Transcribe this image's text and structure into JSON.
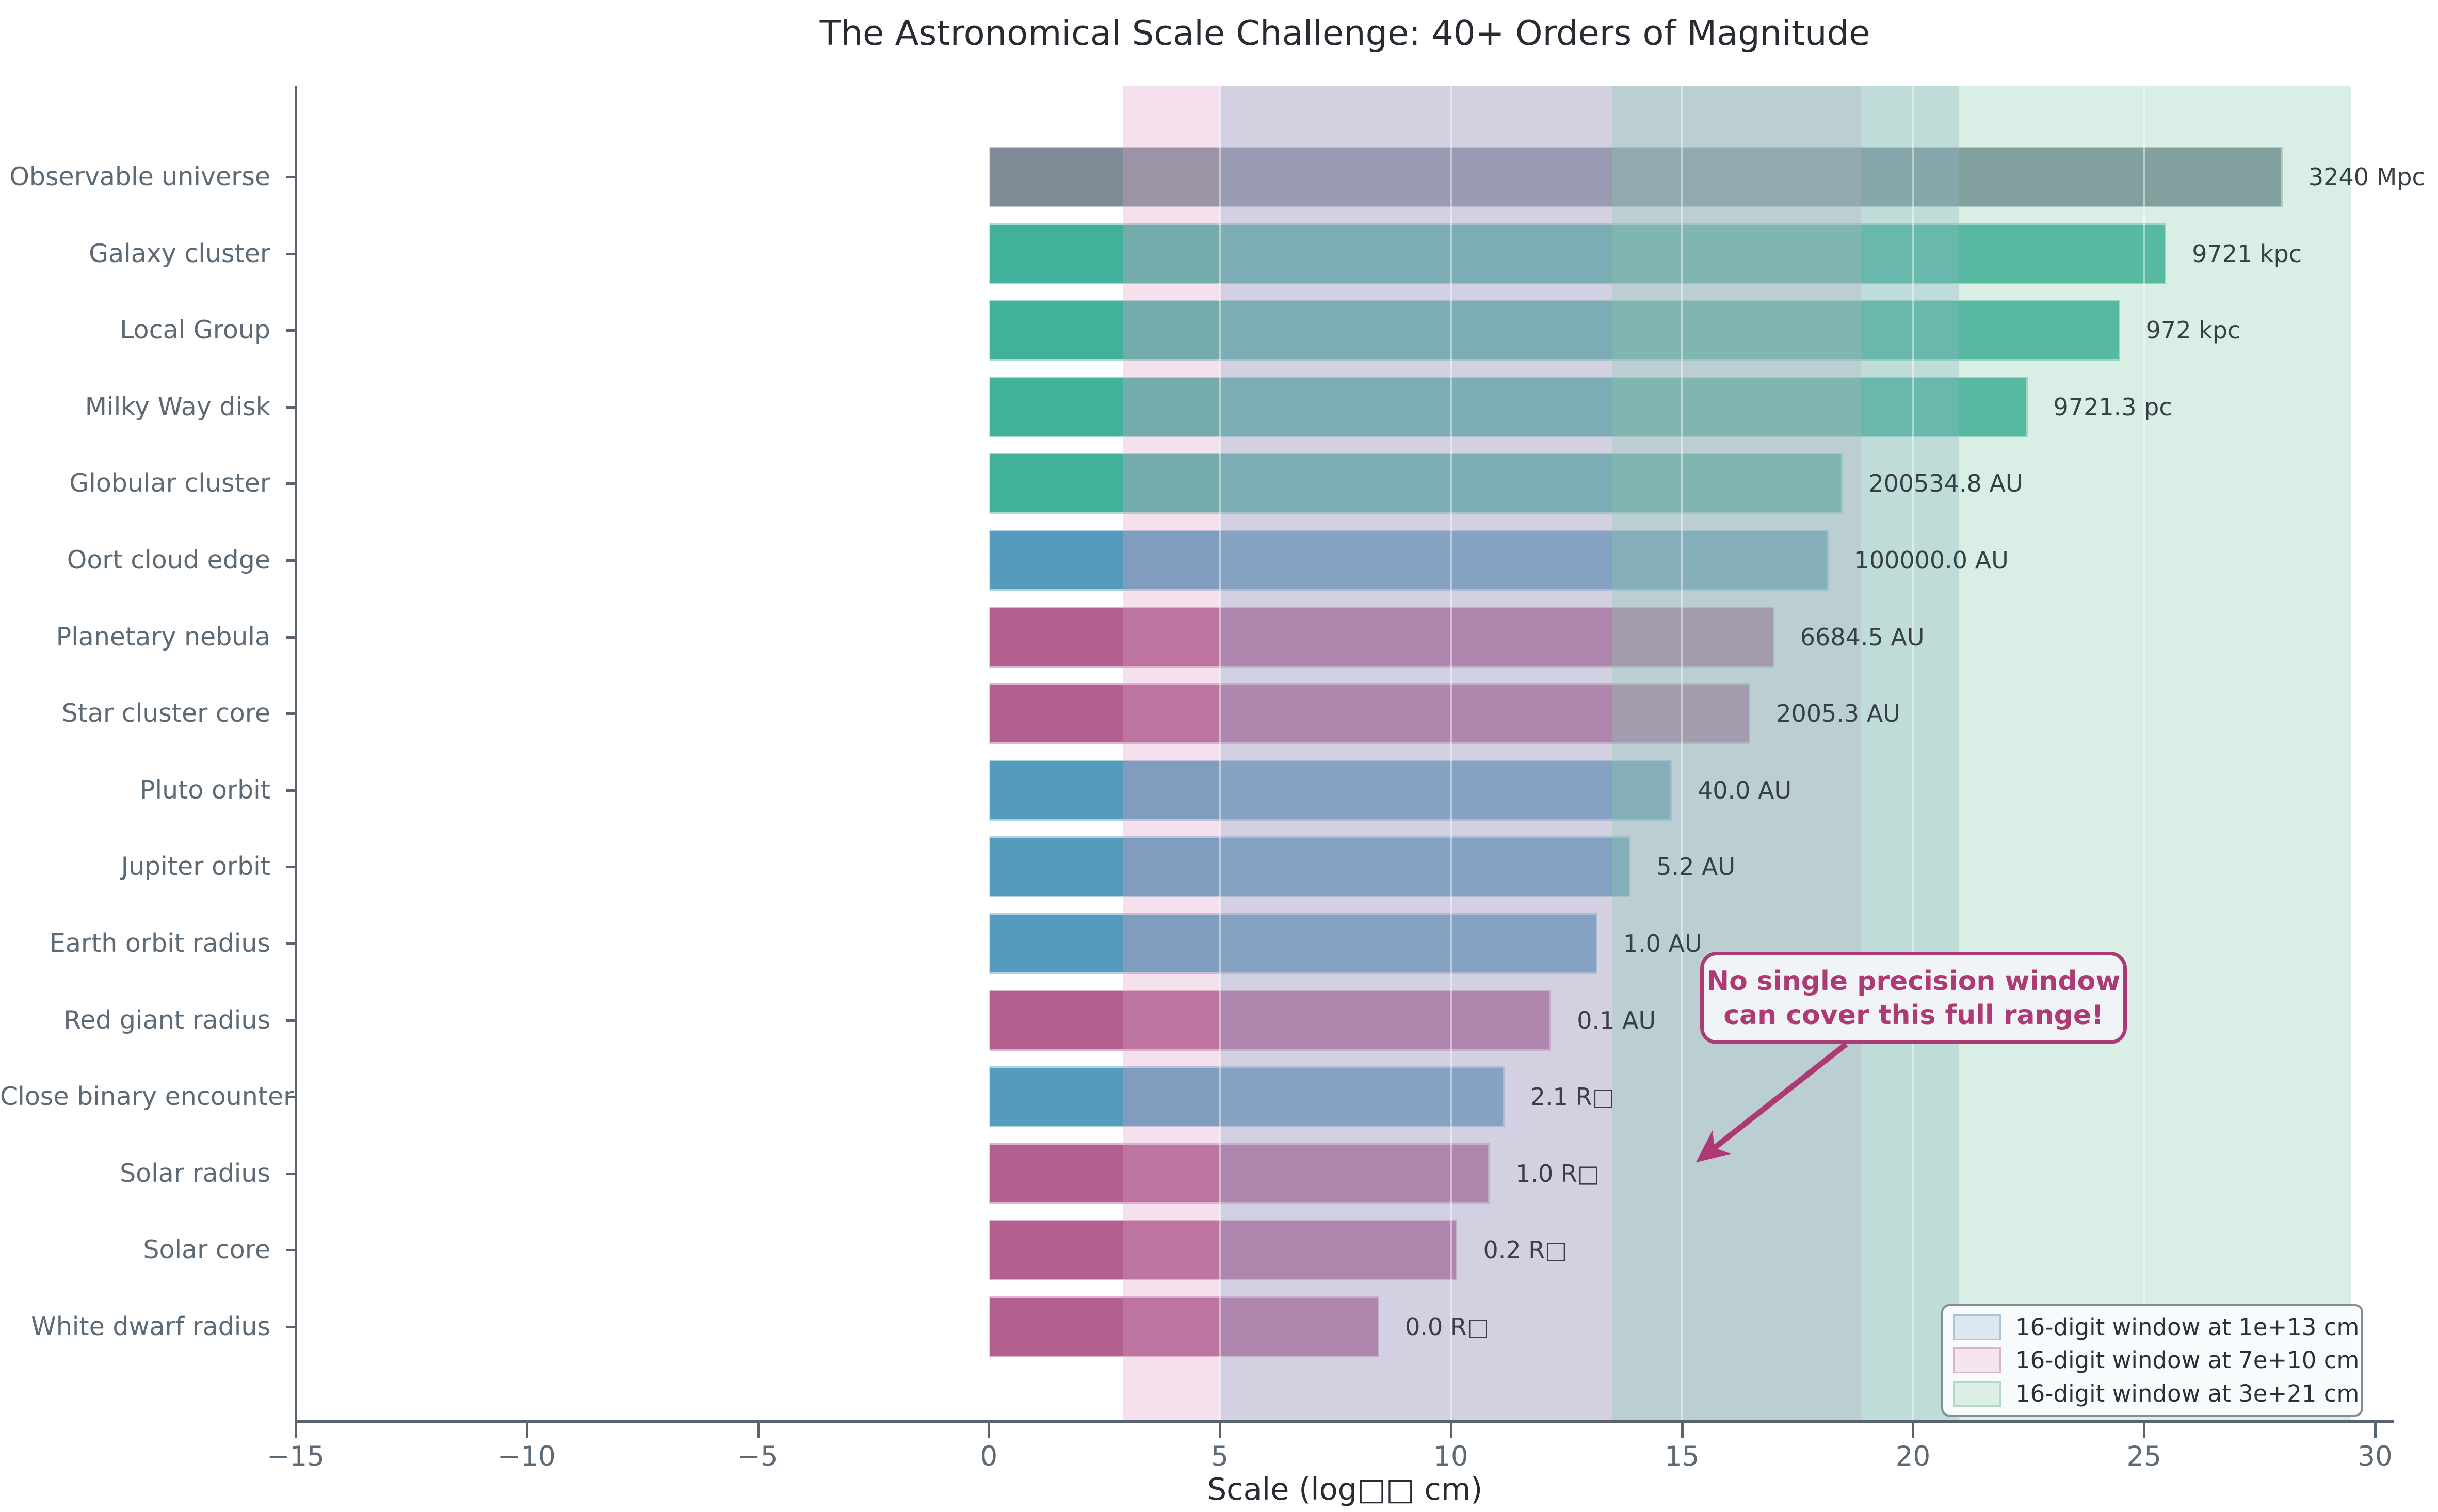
{
  "title": "The Astronomical Scale Challenge: 40+ Orders of Magnitude",
  "annotation": {
    "line1": "No single precision window",
    "line2": "can cover this full range!",
    "color": "#ad3a74"
  },
  "chart_data": {
    "type": "bar",
    "orientation": "horizontal",
    "title": "The Astronomical Scale Challenge: 40+ Orders of Magnitude",
    "xlabel": "Scale (log□□ cm)",
    "ylabel": "",
    "xlim": [
      -15,
      30.4
    ],
    "grid": true,
    "legend_position": "lower right",
    "categories": [
      "Observable universe",
      "Galaxy cluster",
      "Local Group",
      "Milky Way disk",
      "Globular cluster",
      "Oort cloud edge",
      "Planetary nebula",
      "Star cluster core",
      "Pluto orbit",
      "Jupiter orbit",
      "Earth orbit radius",
      "Red giant radius",
      "Close binary encounter",
      "Solar radius",
      "Solar core",
      "White dwarf radius"
    ],
    "values_log10_cm": [
      28.0,
      25.48,
      24.48,
      22.48,
      18.48,
      18.17,
      17.0,
      16.48,
      14.78,
      13.89,
      13.17,
      12.17,
      11.16,
      10.84,
      10.14,
      8.45
    ],
    "bar_labels": [
      "3240 Mpc",
      "9721 kpc",
      "972 kpc",
      "9721.3 pc",
      "200534.8 AU",
      "100000.0 AU",
      "6684.5 AU",
      "2005.3 AU",
      "40.0 AU",
      "5.2 AU",
      "1.0 AU",
      "0.1 AU",
      "2.1 R□",
      "1.0 R□",
      "0.2 R□",
      "0.0 R□"
    ],
    "bar_colors": [
      "#7f8c97",
      "#41b19c",
      "#41b19c",
      "#41b19c",
      "#41b19c",
      "#559bbd",
      "#b2618f",
      "#b2618f",
      "#559bbd",
      "#559bbd",
      "#559bbd",
      "#b2618f",
      "#559bbd",
      "#b2618f",
      "#b2618f",
      "#b2618f"
    ],
    "x_ticks": {
      "values": [
        -15,
        -10,
        -5,
        0,
        5,
        10,
        15,
        20,
        25,
        30
      ],
      "labels": [
        "−15",
        "−10",
        "−5",
        "0",
        "5",
        "10",
        "15",
        "20",
        "25",
        "30"
      ]
    },
    "bands": [
      {
        "label": "16-digit window at 7e+10 cm",
        "from": 2.9,
        "to": 18.87,
        "fill": "rgba(221,162,198,0.32)"
      },
      {
        "label": "16-digit window at 1e+13 cm",
        "from": 5.0,
        "to": 21.0,
        "fill": "rgba(142,174,201,0.32)"
      },
      {
        "label": "16-digit window at 3e+21 cm",
        "from": 13.48,
        "to": 29.48,
        "fill": "rgba(138,202,175,0.32)"
      }
    ]
  },
  "legend": {
    "entries": [
      {
        "label": "16-digit window at 1e+13 cm",
        "swatch_fill": "#dde7ef",
        "swatch_border": "#aac4d8"
      },
      {
        "label": "16-digit window at 7e+10 cm",
        "swatch_fill": "#f5e3ee",
        "swatch_border": "#dcb3cc"
      },
      {
        "label": "16-digit window at 3e+21 cm",
        "swatch_fill": "#dcefe7",
        "swatch_border": "#b4d8c6"
      }
    ]
  },
  "colors": {
    "spine": "#5a6470",
    "tick_label": "#5c6a76",
    "value_label": "#373f47",
    "annotation": "#ad3a74",
    "bar_gray": "#7f8c97",
    "bar_teal": "#41b19c",
    "bar_blue": "#559bbd",
    "bar_magenta": "#b2618f"
  }
}
